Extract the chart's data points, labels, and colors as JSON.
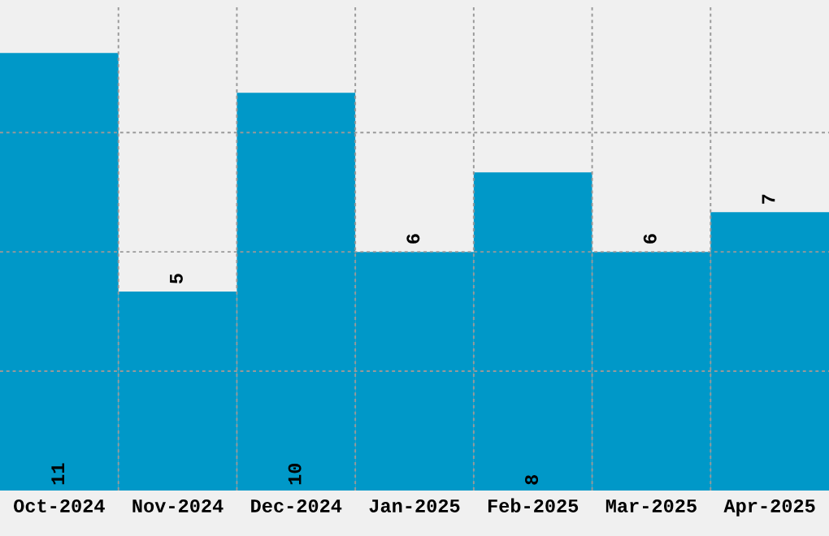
{
  "chart_data": {
    "type": "bar",
    "categories": [
      "Oct-2024",
      "Nov-2024",
      "Dec-2024",
      "Jan-2025",
      "Feb-2025",
      "Mar-2025",
      "Apr-2025"
    ],
    "values": [
      11,
      5,
      10,
      6,
      8,
      6,
      7
    ],
    "color": "#0098c8",
    "ylim": [
      0,
      12.2
    ],
    "yticks": [
      {
        "value": 3,
        "label": null
      },
      {
        "value": 6,
        "label": null
      },
      {
        "value": 9,
        "label": null
      }
    ],
    "grid": true,
    "data_labels": true
  }
}
